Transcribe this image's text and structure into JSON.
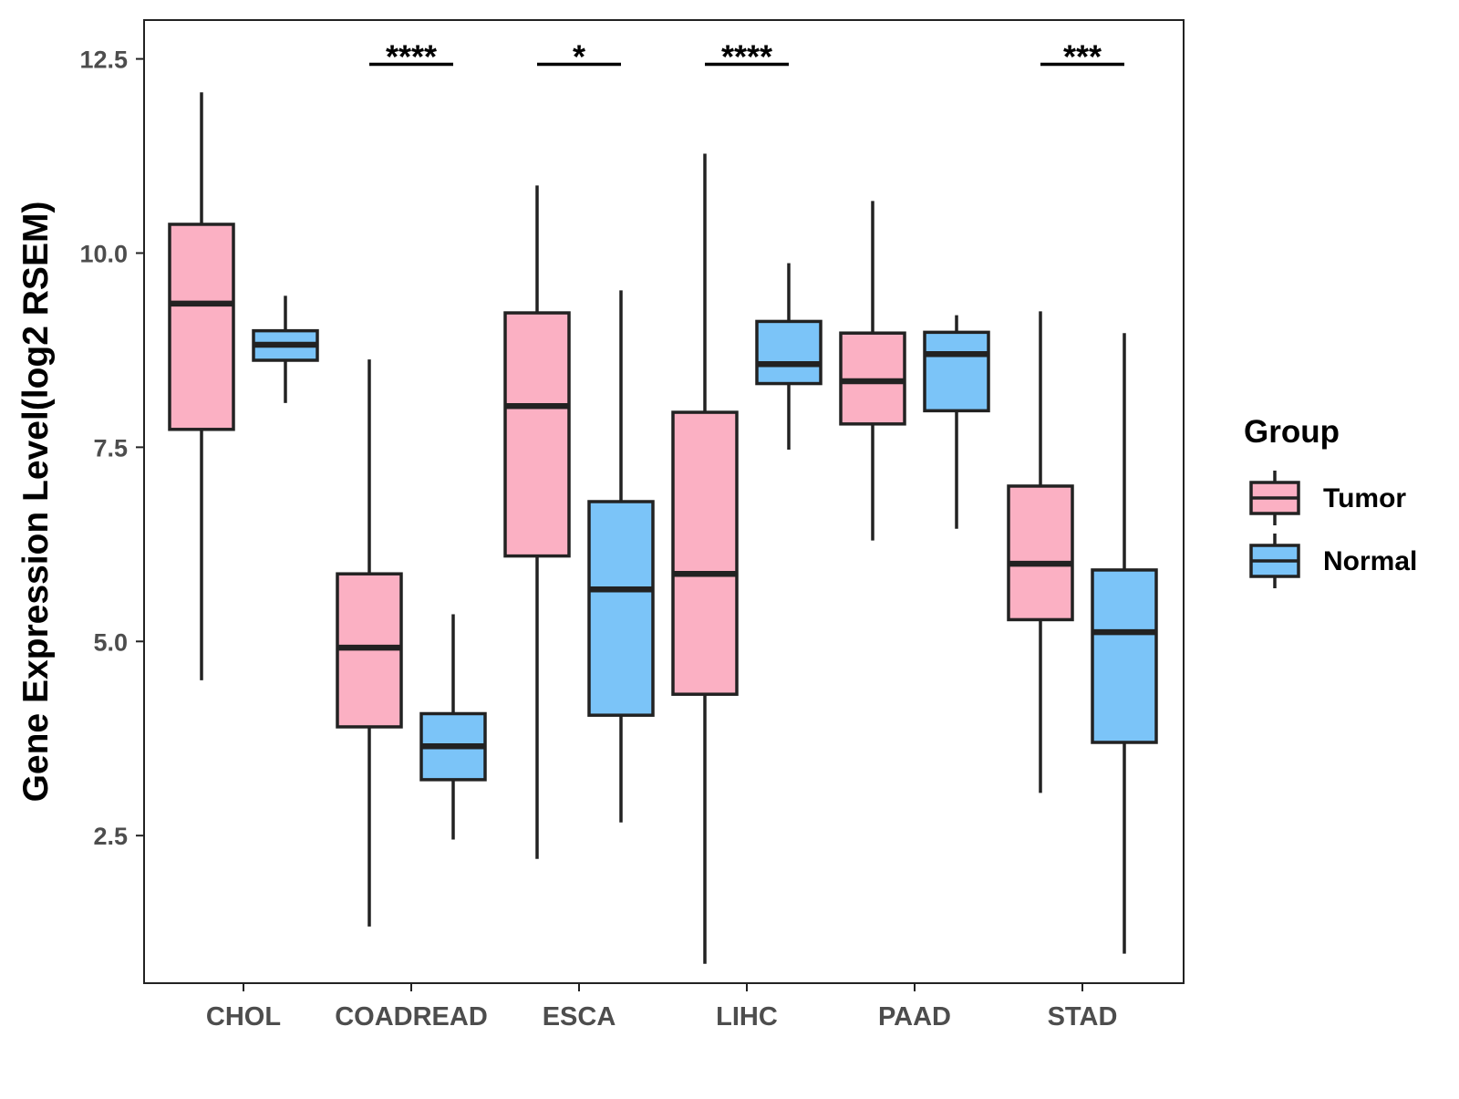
{
  "chart_data": {
    "type": "boxplot",
    "title": "",
    "xlabel": "",
    "ylabel": "Gene Expression Level(log2 RSEM)",
    "ylim": [
      0.6,
      13.0
    ],
    "yticks": [
      2.5,
      5.0,
      7.5,
      10.0,
      12.5
    ],
    "ytick_labels": [
      "2.5",
      "5.0",
      "7.5",
      "10.0",
      "12.5"
    ],
    "categories": [
      "CHOL",
      "COADREAD",
      "ESCA",
      "LIHC",
      "PAAD",
      "STAD"
    ],
    "grid": false,
    "legend": {
      "title": "Group",
      "position": "right"
    },
    "series": [
      {
        "name": "Tumor",
        "color": "#FBB0C3",
        "boxes": [
          {
            "min": 4.5,
            "q1": 7.73,
            "median": 9.35,
            "q3": 10.37,
            "max": 12.07
          },
          {
            "min": 1.33,
            "q1": 3.9,
            "median": 4.92,
            "q3": 5.87,
            "max": 8.63
          },
          {
            "min": 2.2,
            "q1": 6.1,
            "median": 8.03,
            "q3": 9.23,
            "max": 10.87
          },
          {
            "min": 0.85,
            "q1": 4.32,
            "median": 5.87,
            "q3": 7.95,
            "max": 11.28
          },
          {
            "min": 6.3,
            "q1": 7.8,
            "median": 8.35,
            "q3": 8.97,
            "max": 10.67
          },
          {
            "min": 3.05,
            "q1": 5.28,
            "median": 6.0,
            "q3": 7.0,
            "max": 9.25
          }
        ]
      },
      {
        "name": "Normal",
        "color": "#7BC4F8",
        "boxes": [
          {
            "min": 8.07,
            "q1": 8.62,
            "median": 8.82,
            "q3": 9.0,
            "max": 9.45
          },
          {
            "min": 2.45,
            "q1": 3.22,
            "median": 3.65,
            "q3": 4.07,
            "max": 5.35
          },
          {
            "min": 2.67,
            "q1": 4.05,
            "median": 5.67,
            "q3": 6.8,
            "max": 9.52
          },
          {
            "min": 7.47,
            "q1": 8.32,
            "median": 8.57,
            "q3": 9.12,
            "max": 9.87
          },
          {
            "min": 6.45,
            "q1": 7.97,
            "median": 8.7,
            "q3": 8.98,
            "max": 9.2
          },
          {
            "min": 0.98,
            "q1": 3.7,
            "median": 5.12,
            "q3": 5.92,
            "max": 8.97
          }
        ]
      }
    ],
    "significance": [
      {
        "category": "COADREAD",
        "label": "****",
        "y": 12.43
      },
      {
        "category": "ESCA",
        "label": "*",
        "y": 12.43
      },
      {
        "category": "LIHC",
        "label": "****",
        "y": 12.43
      },
      {
        "category": "STAD",
        "label": "***",
        "y": 12.43
      }
    ]
  }
}
